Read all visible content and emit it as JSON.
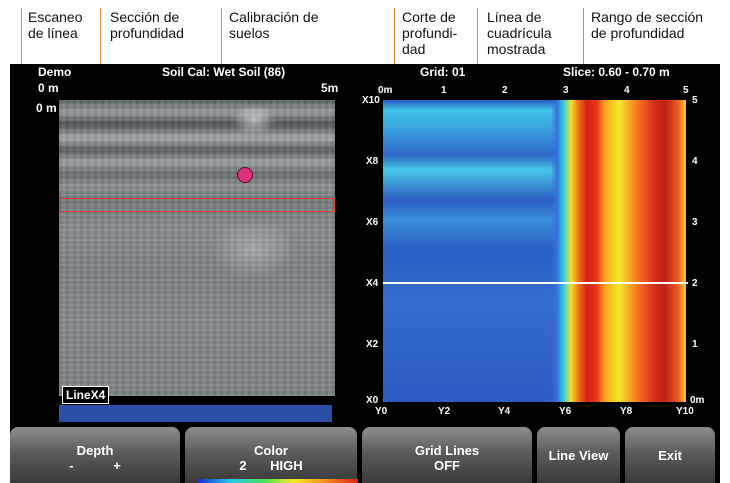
{
  "callouts": {
    "escaneo": "Escaneo\nde línea",
    "seccion": "Sección de\nprofundidad",
    "calibracion": "Calibración de\nsuelos",
    "corte": "Corte de\nprofundi-\ndad",
    "linea": "Línea de\ncuadrícula\nmostrada",
    "rango": "Rango de sección\nde profundidad"
  },
  "header": {
    "project": "Demo",
    "soil_cal": "Soil Cal: Wet Soil (86)",
    "grid": "Grid: 01",
    "slice": "Slice: 0.60 - 0.70 m",
    "scan_start": "0 m",
    "scan_end": "5m",
    "depth_top": "0 m"
  },
  "line_scan": {
    "label": "LineX4"
  },
  "plan_view": {
    "top_axis": [
      "0m",
      "1",
      "2",
      "3",
      "4",
      "5"
    ],
    "bottom_axis": [
      "Y0",
      "Y2",
      "Y4",
      "Y6",
      "Y8",
      "Y10"
    ],
    "left_axis": [
      "X10",
      "X8",
      "X6",
      "X4",
      "X2",
      "X0"
    ],
    "right_axis": [
      "5",
      "4",
      "3",
      "2",
      "1",
      "0m"
    ],
    "grid_line_row": "X4"
  },
  "softkeys": {
    "depth": {
      "label": "Depth",
      "minus": "-",
      "plus": "+"
    },
    "color": {
      "label": "Color",
      "value_num": "2",
      "value": "HIGH"
    },
    "grid_lines": {
      "label": "Grid Lines",
      "value": "OFF"
    },
    "line_view": {
      "label": "Line View"
    },
    "exit": {
      "label": "Exit"
    }
  },
  "colors": {
    "callout_line": "#e08a3c",
    "slice_box": "#e0352f",
    "target_dot": "#e0307d",
    "blue_bar": "#2b4fa8"
  }
}
